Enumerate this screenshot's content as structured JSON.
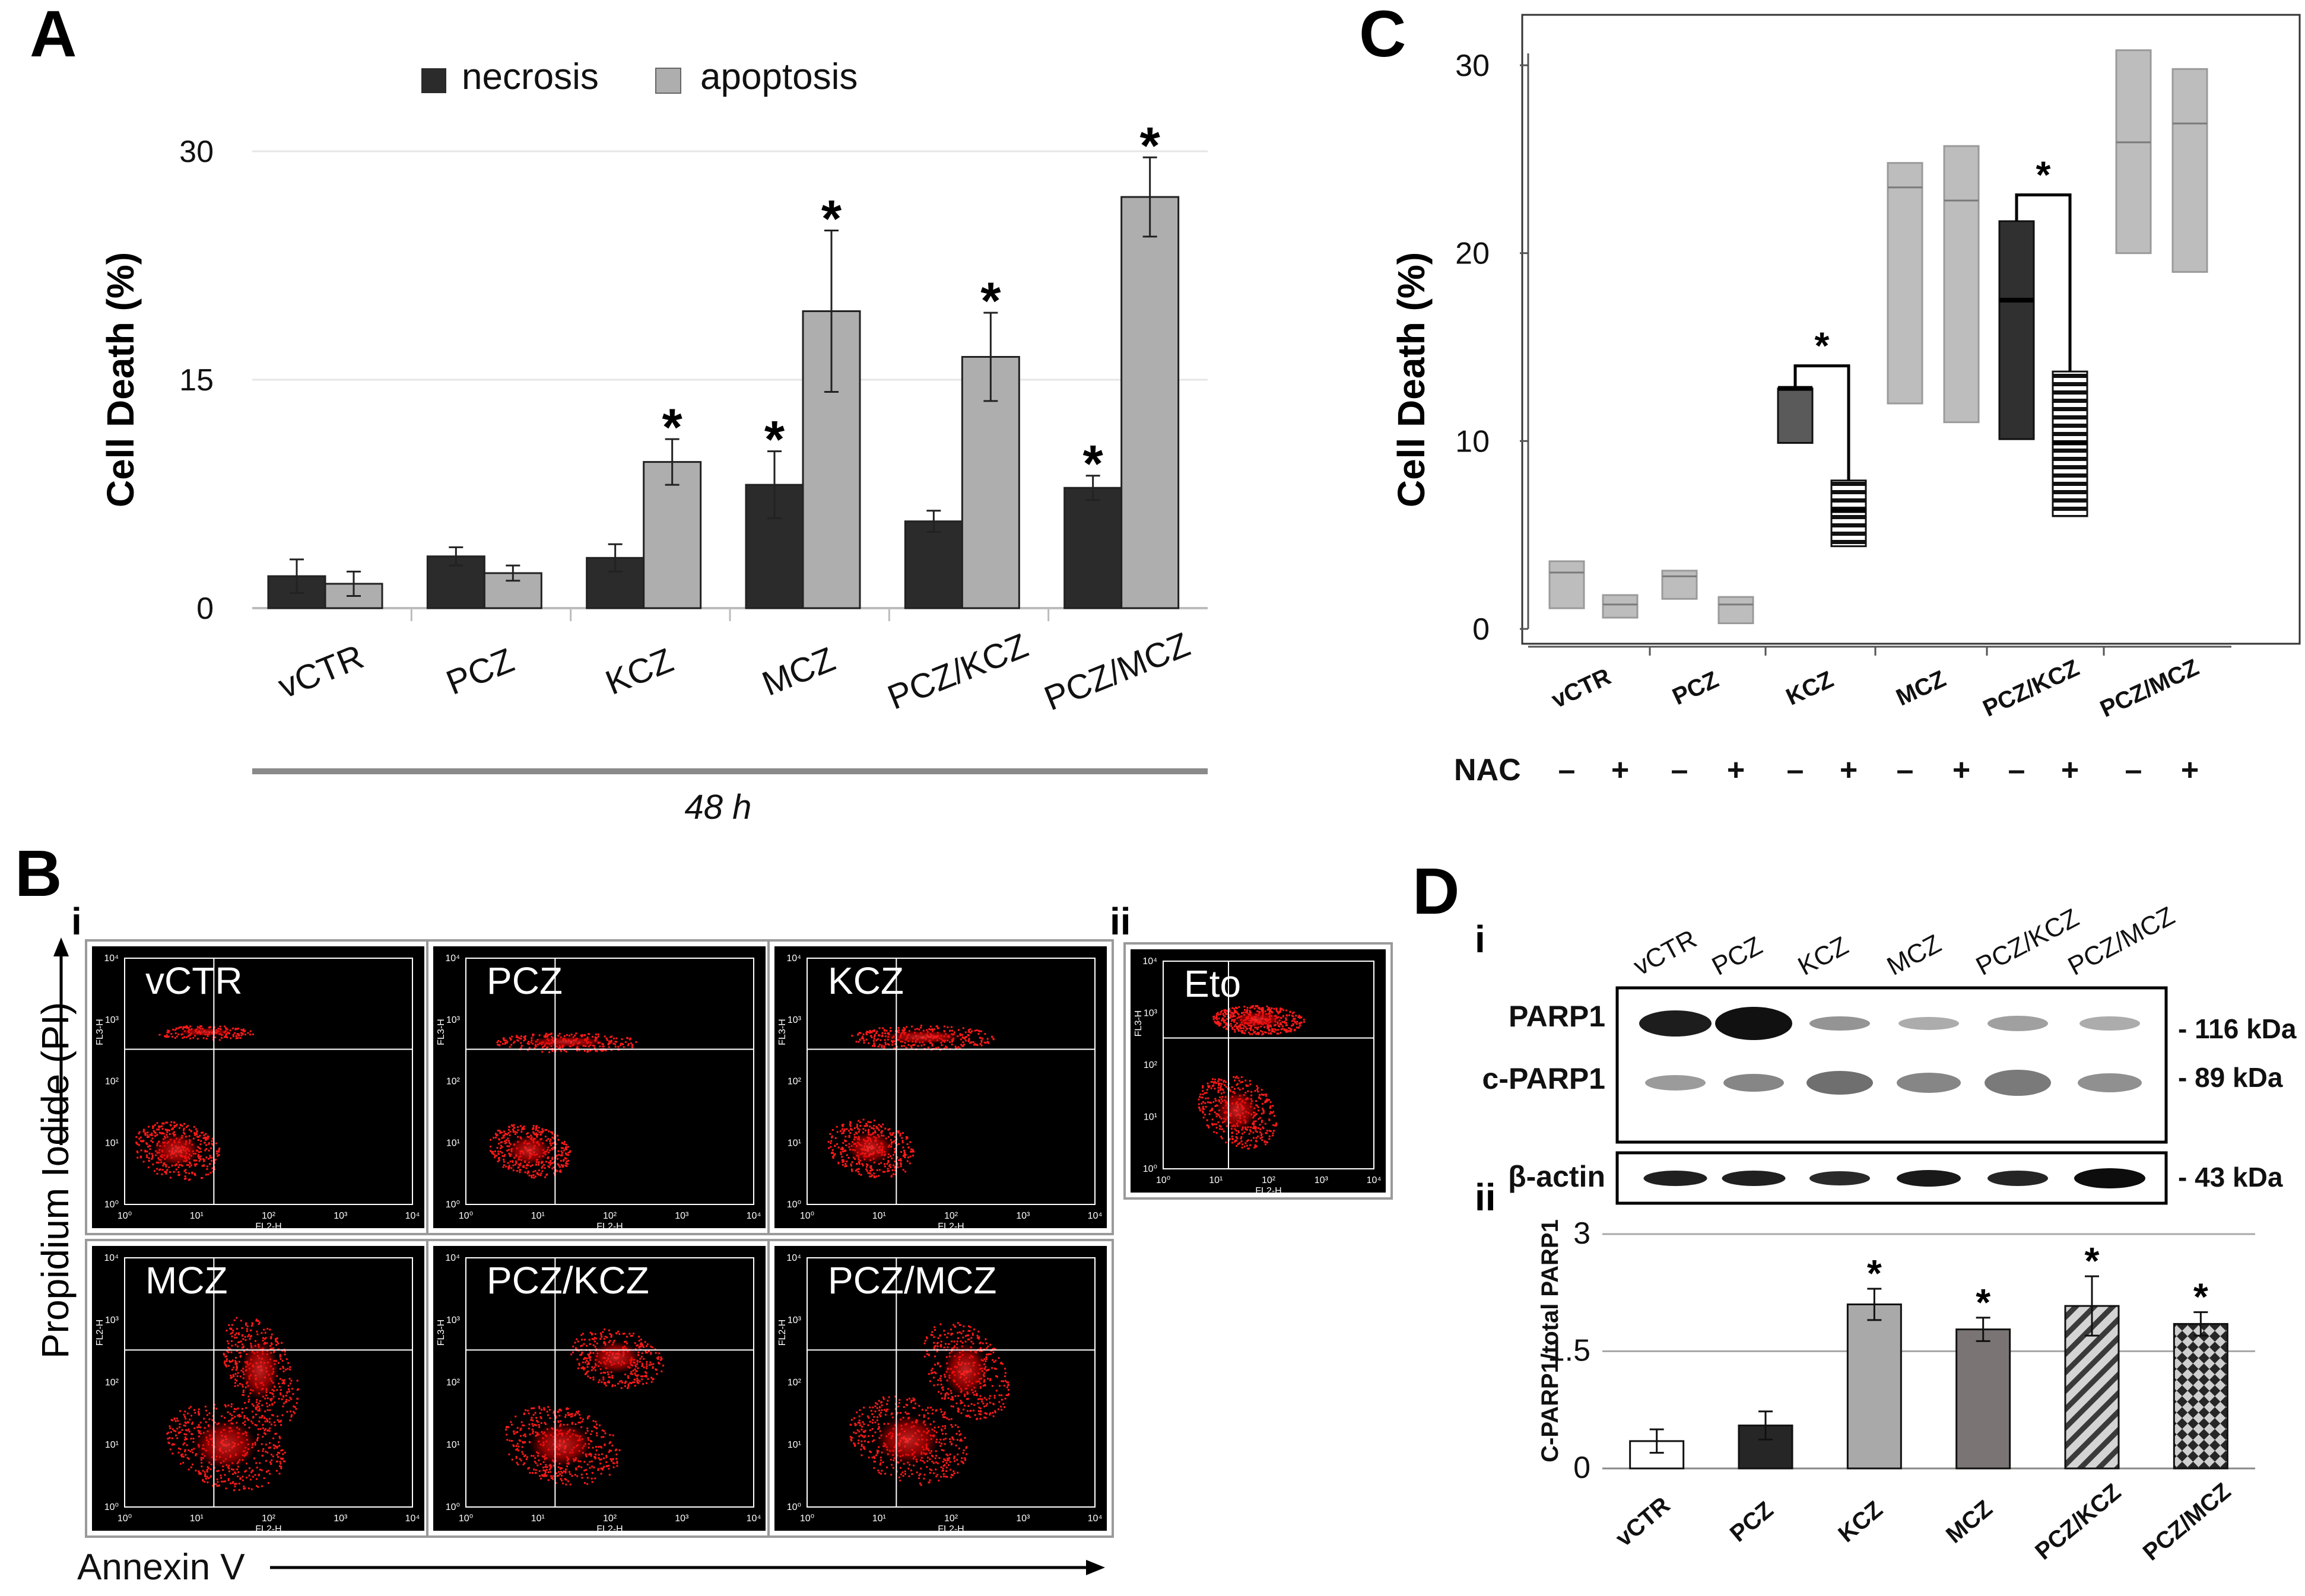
{
  "panels": {
    "a": "A",
    "b": "B",
    "c": "C",
    "d": "D",
    "b_i": "i",
    "b_ii": "ii",
    "d_i": "i",
    "d_ii": "ii"
  },
  "colors": {
    "necrosis": "#2b2b2b",
    "apoptosis": "#aeaeae",
    "kcz_c": "#5a5a5a",
    "pczkcz_c": "#303030",
    "light_box": "#bdbdbd",
    "flow_bg": "#000000",
    "flow_dots": "#ff1a1a",
    "d_vctr": "#ffffff",
    "d_pcz": "#262626",
    "d_kcz": "#a9a9a9",
    "d_mcz": "#7a7474"
  },
  "chart_data": [
    {
      "id": "A",
      "type": "bar",
      "title": "",
      "ylabel": "Cell Death (%)",
      "xlabel": "48 h",
      "ylim": [
        0,
        30
      ],
      "yticks": [
        "0",
        "15",
        "30"
      ],
      "categories": [
        "vCTR",
        "PCZ",
        "KCZ",
        "MCZ",
        "PCZ/KCZ",
        "PCZ/MCZ"
      ],
      "series": [
        {
          "name": "necrosis",
          "values": [
            2.1,
            3.4,
            3.3,
            8.1,
            5.7,
            7.9
          ],
          "errors": [
            1.1,
            0.6,
            0.9,
            2.2,
            0.7,
            0.8
          ],
          "significant": [
            false,
            false,
            false,
            true,
            false,
            true
          ]
        },
        {
          "name": "apoptosis",
          "values": [
            1.6,
            2.3,
            9.6,
            19.5,
            16.5,
            27.0
          ],
          "errors": [
            0.8,
            0.5,
            1.5,
            5.3,
            2.9,
            2.6
          ],
          "significant": [
            false,
            false,
            true,
            true,
            true,
            true
          ]
        }
      ],
      "star": "*"
    },
    {
      "id": "C",
      "type": "box",
      "ylabel": "Cell Death (%)",
      "ylim": [
        0,
        30
      ],
      "yticks": [
        "0",
        "10",
        "20",
        "30"
      ],
      "categories": [
        "vCTR",
        "PCZ",
        "KCZ",
        "MCZ",
        "PCZ/KCZ",
        "PCZ/MCZ"
      ],
      "row_label": "NAC",
      "nac_minus": "–",
      "nac_plus": "+",
      "boxes": [
        {
          "group": "vCTR",
          "nac": "–",
          "low": 1.1,
          "high": 3.6,
          "median": 3.0
        },
        {
          "group": "vCTR",
          "nac": "+",
          "low": 0.6,
          "high": 1.8,
          "median": 1.3
        },
        {
          "group": "PCZ",
          "nac": "–",
          "low": 1.6,
          "high": 3.1,
          "median": 2.8
        },
        {
          "group": "PCZ",
          "nac": "+",
          "low": 0.3,
          "high": 1.7,
          "median": 1.3
        },
        {
          "group": "KCZ",
          "nac": "–",
          "low": 9.9,
          "high": 12.8,
          "median": 12.8
        },
        {
          "group": "KCZ",
          "nac": "+",
          "low": 4.4,
          "high": 7.9,
          "median": 6.3
        },
        {
          "group": "MCZ",
          "nac": "–",
          "low": 12.0,
          "high": 24.8,
          "median": 23.5
        },
        {
          "group": "MCZ",
          "nac": "+",
          "low": 11.0,
          "high": 25.7,
          "median": 22.8
        },
        {
          "group": "PCZ/KCZ",
          "nac": "–",
          "low": 10.1,
          "high": 21.7,
          "median": 17.5
        },
        {
          "group": "PCZ/KCZ",
          "nac": "+",
          "low": 6.0,
          "high": 13.7,
          "median": 9.9
        },
        {
          "group": "PCZ/MCZ",
          "nac": "–",
          "low": 20.0,
          "high": 30.8,
          "median": 25.9
        },
        {
          "group": "PCZ/MCZ",
          "nac": "+",
          "low": 19.0,
          "high": 29.8,
          "median": 26.9
        }
      ],
      "significant_pairs": [
        "KCZ",
        "PCZ/KCZ"
      ],
      "star": "*"
    },
    {
      "id": "D-ii",
      "type": "bar",
      "ylabel": "C-PARP1/total PARP1",
      "ylim": [
        0,
        3
      ],
      "yticks": [
        "0",
        "1.5",
        "3"
      ],
      "categories": [
        "vCTR",
        "PCZ",
        "KCZ",
        "MCZ",
        "PCZ/KCZ",
        "PCZ/MCZ"
      ],
      "values": [
        0.35,
        0.55,
        2.1,
        1.78,
        2.08,
        1.85
      ],
      "errors": [
        0.15,
        0.18,
        0.2,
        0.15,
        0.38,
        0.15
      ],
      "significant": [
        false,
        false,
        true,
        true,
        true,
        true
      ],
      "star": "*"
    }
  ],
  "flow": {
    "x_axis": "Annexin V",
    "y_axis": "Propidium Iodide (PI)",
    "axis_fl2": "FL2-H",
    "axis_fl3": "FL3-H",
    "ticks": [
      "10⁰",
      "10¹",
      "10²",
      "10³",
      "10⁴"
    ],
    "plots": [
      {
        "label": "vCTR",
        "yaxis": "FL3-H"
      },
      {
        "label": "PCZ",
        "yaxis": "FL3-H"
      },
      {
        "label": "KCZ",
        "yaxis": "FL3-H"
      },
      {
        "label": "MCZ",
        "yaxis": "FL2-H"
      },
      {
        "label": "PCZ/KCZ",
        "yaxis": "FL3-H"
      },
      {
        "label": "PCZ/MCZ",
        "yaxis": "FL2-H"
      },
      {
        "label": "Eto",
        "yaxis": "FL3-H"
      }
    ]
  },
  "blot": {
    "lanes": [
      "vCTR",
      "PCZ",
      "KCZ",
      "MCZ",
      "PCZ/KCZ",
      "PCZ/MCZ"
    ],
    "rows": [
      "PARP1",
      "c-PARP1",
      "β-actin"
    ],
    "markers": [
      "- 116 kDa",
      "- 89 kDa",
      "- 43 kDa"
    ]
  }
}
